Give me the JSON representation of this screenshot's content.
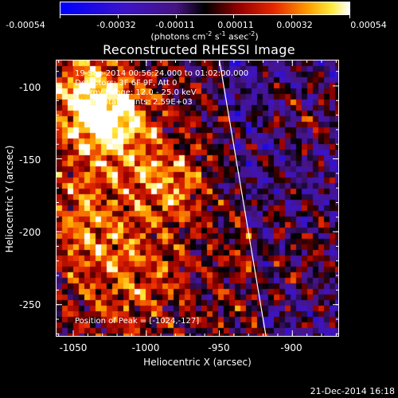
{
  "colorbar": {
    "tick_labels": [
      "-0.00054",
      "-0.00032",
      "-0.00011",
      "0.00011",
      "0.00032",
      "0.00054"
    ],
    "units_prefix": "(photons cm",
    "units_exp1": "-2",
    "units_mid1": " s",
    "units_exp2": "-1",
    "units_mid2": " asec",
    "units_exp3": "-2",
    "units_suffix": ")"
  },
  "title": "Reconstructed RHESSI Image",
  "overlay": {
    "line1": "19-Sep-2014 00:56:24.000 to 01:02:00.000",
    "line2": "Detectors: 3F 6F 9F, Att 0",
    "line3": "Energy Range: 12.0 - 25.0 keV",
    "line4": "Clean     Total counts: 2.59E+03",
    "peak": "Position of Peak = [-1024,-127]"
  },
  "chart_data": {
    "type": "heatmap",
    "title": "Reconstructed RHESSI Image",
    "xlabel": "Heliocentric X (arcsec)",
    "ylabel": "Heliocentric Y (arcsec)",
    "xlim": [
      -1062,
      -868
    ],
    "ylim": [
      -272,
      -82
    ],
    "x_ticks": [
      -1050,
      -1000,
      -950,
      -900
    ],
    "x_tick_labels": [
      "-1050",
      "-1000",
      "-950",
      "-900"
    ],
    "y_ticks": [
      -100,
      -150,
      -200,
      -250
    ],
    "y_tick_labels": [
      "-100",
      "-150",
      "-200",
      "-250"
    ],
    "color_range": [
      -0.00054,
      0.00054
    ],
    "colormap": "blue-purple-red-yellow-white",
    "limb_line": {
      "x_start": -950,
      "y_start": -82,
      "x_end": -918,
      "y_end": -272
    },
    "peak_position": [
      -1024,
      -127
    ]
  },
  "timestamp": "21-Dec-2014 16:18"
}
